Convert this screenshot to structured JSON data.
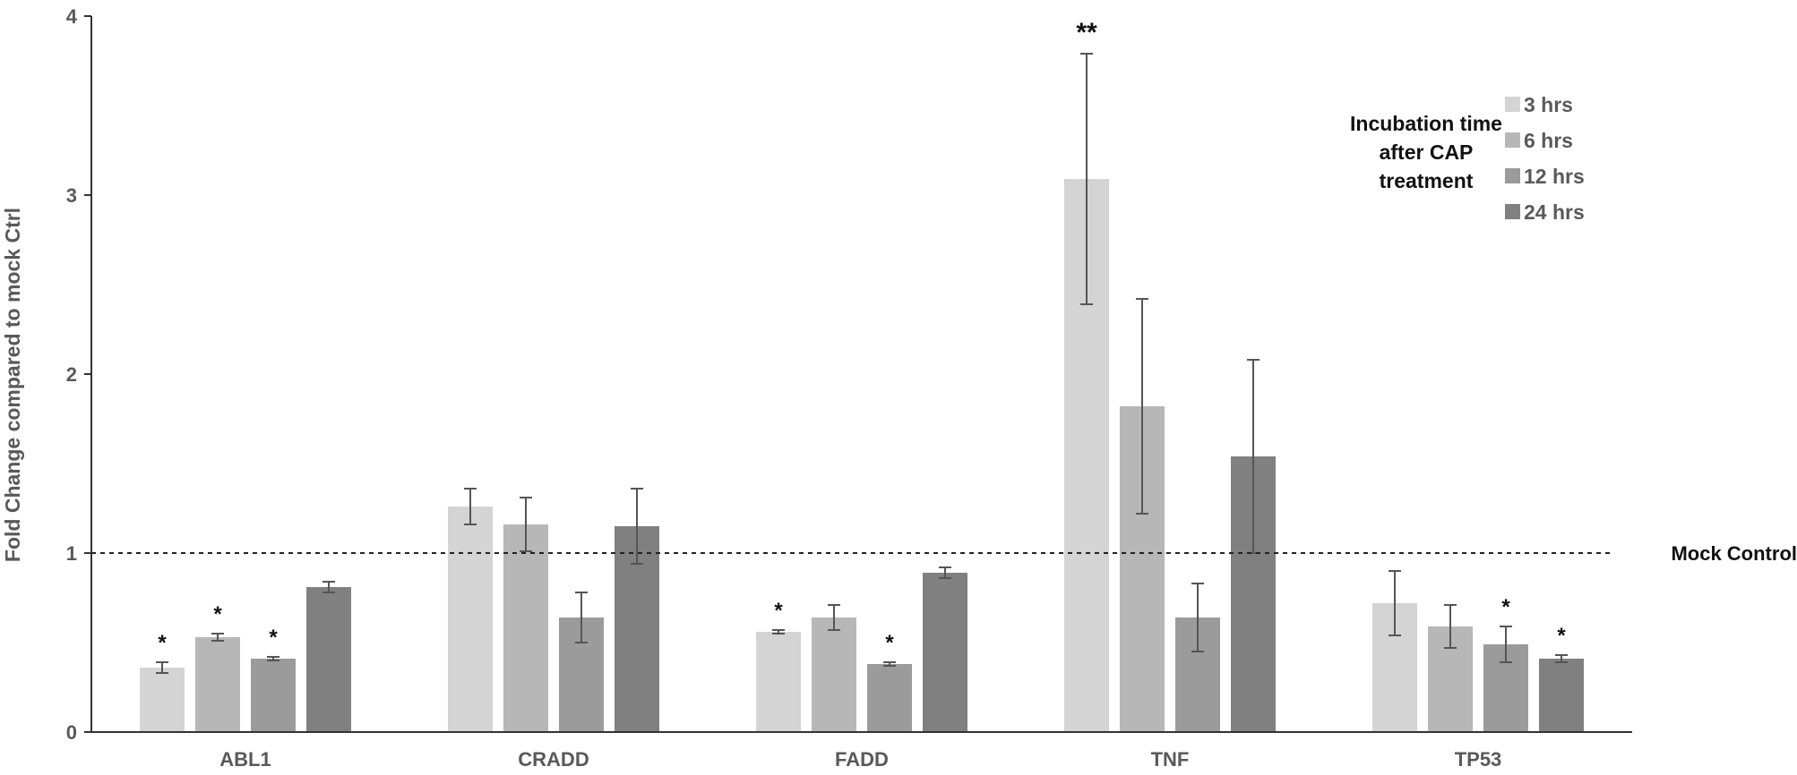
{
  "chart_data": {
    "type": "bar",
    "ylabel": "Fold Change compared to mock Ctrl",
    "ylim": [
      0,
      4
    ],
    "yticks": [
      "0",
      "1",
      "2",
      "3",
      "4"
    ],
    "categories": [
      "ABL1",
      "CRADD",
      "FADD",
      "TNF",
      "TP53"
    ],
    "grid": false,
    "legend": {
      "title_lines": [
        "Incubation time",
        "after CAP",
        "treatment"
      ],
      "position": "top-right"
    },
    "reference_line": {
      "value": 1.0,
      "label": "Mock Control",
      "style": "dashed"
    },
    "series": [
      {
        "name": "3 hrs",
        "color": "#d4d4d4",
        "values": [
          0.36,
          1.26,
          0.56,
          3.09,
          0.72
        ],
        "errors": [
          0.03,
          0.1,
          0.01,
          0.7,
          0.18
        ],
        "significance": [
          "*",
          "",
          "*",
          "**",
          ""
        ]
      },
      {
        "name": "6 hrs",
        "color": "#b7b7b7",
        "values": [
          0.53,
          1.16,
          0.64,
          1.82,
          0.59
        ],
        "errors": [
          0.02,
          0.15,
          0.07,
          0.6,
          0.12
        ],
        "significance": [
          "*",
          "",
          "",
          "",
          ""
        ]
      },
      {
        "name": "12 hrs",
        "color": "#9b9b9b",
        "values": [
          0.41,
          0.64,
          0.38,
          0.64,
          0.49
        ],
        "errors": [
          0.01,
          0.14,
          0.01,
          0.19,
          0.1
        ],
        "significance": [
          "*",
          "",
          "*",
          "",
          "*"
        ]
      },
      {
        "name": "24 hrs",
        "color": "#808080",
        "values": [
          0.81,
          1.15,
          0.89,
          1.54,
          0.41
        ],
        "errors": [
          0.03,
          0.21,
          0.03,
          0.54,
          0.02
        ],
        "significance": [
          "",
          "",
          "",
          "",
          "*"
        ]
      }
    ]
  }
}
